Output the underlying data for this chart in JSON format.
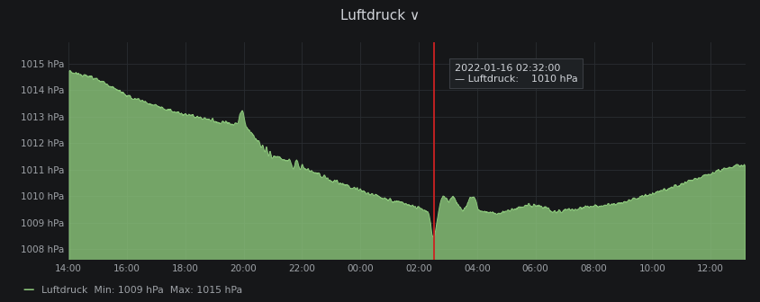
{
  "bg_color": "#161719",
  "line_color": "#8dc87c",
  "fill_color": "#8dc87c",
  "grid_color": "#2a2d31",
  "tick_color": "#9fa3a8",
  "text_color": "#d0d3d8",
  "tooltip_bg": "#1e2124",
  "tooltip_border": "#3a3d42",
  "vline_color": "#cc2222",
  "ylim_low": 1007.6,
  "ylim_high": 1015.8,
  "yticks": [
    1008,
    1009,
    1010,
    1011,
    1012,
    1013,
    1014,
    1015
  ],
  "ytick_labels": [
    "1008 hPa",
    "1009 hPa",
    "1010 hPa",
    "1011 hPa",
    "1012 hPa",
    "1013 hPa",
    "1014 hPa",
    "1015 hPa"
  ],
  "xtick_offsets": [
    0,
    2,
    4,
    6,
    8,
    10,
    12,
    14,
    16,
    18,
    20,
    22
  ],
  "xtick_labels": [
    "14:00",
    "16:00",
    "18:00",
    "20:00",
    "22:00",
    "00:00",
    "02:00",
    "04:00",
    "06:00",
    "08:00",
    "10:00",
    "12:00"
  ],
  "legend_text": "Luftdruck  Min: 1009 hPa  Max: 1015 hPa",
  "tooltip_date": "2022-01-16 02:32:00",
  "tooltip_label": "Luftdruck:",
  "tooltip_value": "1010 hPa",
  "vline_t": 12.533,
  "title_text": "Luftdruck",
  "title_suffix": " ∨",
  "xlim_end": 23.2
}
